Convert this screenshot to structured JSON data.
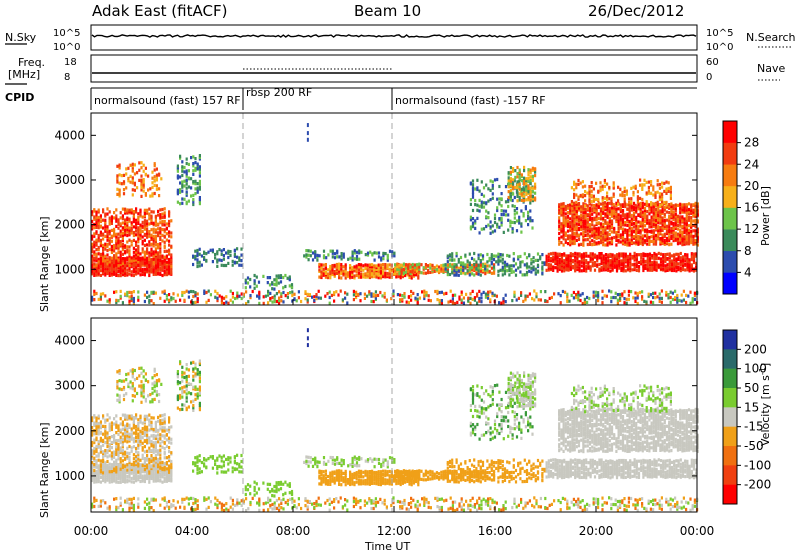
{
  "header": {
    "radar": "Adak East (fitACF)",
    "beam": "Beam 10",
    "date": "26/Dec/2012"
  },
  "colors": {
    "power": [
      "#0000ff",
      "#2c4cae",
      "#3a8a5a",
      "#6dc44a",
      "#f7b01a",
      "#f77c10",
      "#f23c10",
      "#ff0000"
    ],
    "velocity": [
      "#2030a0",
      "#2a6a6a",
      "#3a9a3a",
      "#7acc30",
      "#c8c8c0",
      "#f0a018",
      "#f07010",
      "#f04010",
      "#ff0000"
    ],
    "guide": "#aaaaaa"
  },
  "chart_data": [
    {
      "type": "line",
      "panel": "noise",
      "left_label": "N.Sky",
      "right_label": "N.Search",
      "left_ticks": [
        "10^5",
        "10^0"
      ],
      "right_ticks": [
        "10^5",
        "10^0"
      ]
    },
    {
      "type": "line",
      "panel": "frequency",
      "left_label": "Freq.",
      "left_unit": "[MHz]",
      "right_label": "Nave",
      "left_ticks": [
        "18",
        "8"
      ],
      "right_ticks": [
        "60",
        "0"
      ],
      "cpid_label": "CPID",
      "cpid_segments": [
        {
          "name": "normalsound (fast) 157 RF",
          "start": 0,
          "end": 6
        },
        {
          "name": "rbsp 200 RF",
          "start": 6,
          "end": 12
        },
        {
          "name": "normalsound (fast) -157 RF",
          "start": 12,
          "end": 24
        }
      ]
    },
    {
      "type": "heatmap",
      "panel": "power",
      "ylabel": "Slant Range [km]",
      "ylim": [
        200,
        4500
      ],
      "yticks": [
        "1000",
        "2000",
        "3000",
        "4000"
      ],
      "xlim": [
        0,
        24
      ],
      "colorbar_label": "Power [dB]",
      "colorbar_ticks": [
        "4",
        "8",
        "12",
        "16",
        "20",
        "24",
        "28"
      ]
    },
    {
      "type": "heatmap",
      "panel": "velocity",
      "ylabel": "Slant Range [km]",
      "ylim": [
        200,
        4500
      ],
      "yticks": [
        "1000",
        "2000",
        "3000",
        "4000"
      ],
      "xlim": [
        0,
        24
      ],
      "xlabel": "Time UT",
      "xticks": [
        "00:00",
        "04:00",
        "08:00",
        "12:00",
        "16:00",
        "20:00",
        "00:00"
      ],
      "colorbar_label": "Velocity [m s",
      "colorbar_label_exp": "-1",
      "colorbar_label_end": "]",
      "colorbar_ticks": [
        "200",
        "100",
        "50",
        "15",
        "-15",
        "-50",
        "-100",
        "-200"
      ]
    }
  ]
}
